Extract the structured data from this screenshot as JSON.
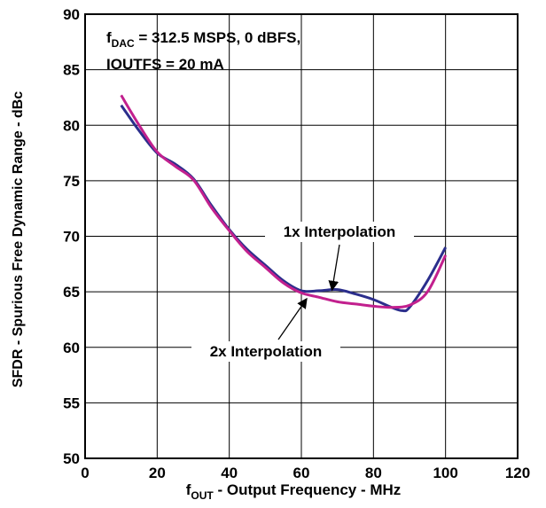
{
  "chart_data": {
    "type": "line",
    "title": "",
    "xlabel": {
      "main": "f",
      "sub": "OUT",
      "rest": " - Output Frequency - MHz"
    },
    "ylabel": "SFDR - Spurious Free Dynamic Range - dBc",
    "xlim": [
      0,
      120
    ],
    "ylim": [
      50,
      90
    ],
    "x_ticks": [
      0,
      20,
      40,
      60,
      80,
      100,
      120
    ],
    "y_ticks": [
      50,
      55,
      60,
      65,
      70,
      75,
      80,
      85,
      90
    ],
    "grid": true,
    "annotation_conditions": {
      "line1_main": "f",
      "line1_sub": "DAC",
      "line1_rest": " = 312.5 MSPS, 0 dBFS,",
      "line2": "IOUTFS = 20 mA"
    },
    "series": [
      {
        "name": "1x Interpolation",
        "color": "#2b2e8c",
        "x": [
          10,
          15,
          20,
          25,
          30,
          35,
          40,
          45,
          50,
          55,
          60,
          65,
          70,
          75,
          80,
          85,
          88,
          90,
          95,
          100
        ],
        "y": [
          81.8,
          79.5,
          77.5,
          76.5,
          75.2,
          72.8,
          70.6,
          68.8,
          67.4,
          66.0,
          65.1,
          65.1,
          65.2,
          64.8,
          64.3,
          63.6,
          63.3,
          63.6,
          66.0,
          69.0
        ]
      },
      {
        "name": "2x Interpolation",
        "color": "#c2208e",
        "x": [
          10,
          15,
          20,
          25,
          30,
          35,
          40,
          45,
          50,
          55,
          60,
          65,
          70,
          75,
          80,
          85,
          90,
          95,
          100
        ],
        "y": [
          82.7,
          80.0,
          77.6,
          76.3,
          75.1,
          72.6,
          70.5,
          68.6,
          67.2,
          65.8,
          64.9,
          64.5,
          64.1,
          63.9,
          63.7,
          63.6,
          63.8,
          65.0,
          68.3
        ]
      }
    ],
    "callouts": [
      {
        "text": "1x Interpolation",
        "series": 0,
        "target_x": 68.5,
        "target_y": 65.3
      },
      {
        "text": "2x Interpolation",
        "series": 1,
        "target_x": 61.5,
        "target_y": 64.7
      }
    ]
  }
}
